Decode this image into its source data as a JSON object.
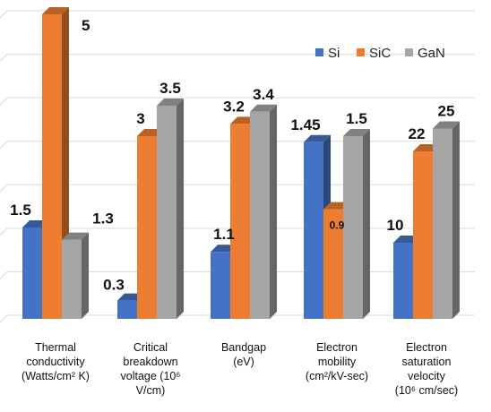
{
  "chart_data": {
    "type": "bar",
    "style": "3d-clustered-column",
    "categories": [
      [
        "Thermal",
        "conductivity",
        "(Watts/cm² K)"
      ],
      [
        "Critical",
        "breakdown",
        "voltage (10⁶",
        "V/cm)"
      ],
      [
        "Bandgap",
        "(eV)"
      ],
      [
        "Electron",
        "mobility",
        "(cm²/kV-sec)"
      ],
      [
        "Electron",
        "saturation",
        "velocity",
        "(10⁶ cm/sec)"
      ]
    ],
    "series": [
      {
        "name": "Si",
        "color": "#4472c4",
        "values": [
          1.5,
          0.3,
          1.1,
          1.45,
          10
        ]
      },
      {
        "name": "SiC",
        "color": "#ed7d31",
        "values": [
          5,
          3,
          3.2,
          0.9,
          22
        ]
      },
      {
        "name": "GaN",
        "color": "#a5a5a5",
        "values": [
          1.3,
          3.5,
          3.4,
          1.5,
          25
        ]
      }
    ],
    "data_labels": [
      [
        "1.5",
        "5",
        "1.3"
      ],
      [
        "0.3",
        "3",
        "3.5"
      ],
      [
        "1.1",
        "3.2",
        "3.4"
      ],
      [
        "1.45",
        "0.9",
        "1.5"
      ],
      [
        "10",
        "22",
        "25"
      ]
    ],
    "axis_scales": [
      5,
      5,
      5,
      2.5,
      40
    ],
    "legend_position": "top-right",
    "grid": true
  }
}
